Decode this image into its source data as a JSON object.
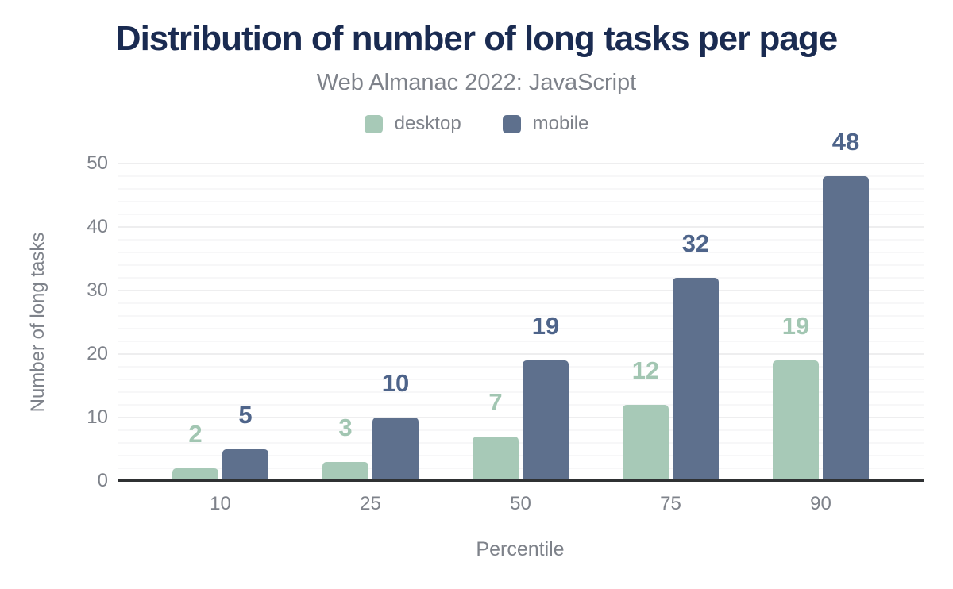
{
  "chart": {
    "title": "Distribution of number of long tasks per page",
    "subtitle": "Web Almanac 2022: JavaScript"
  },
  "chart_data": {
    "type": "bar",
    "categories": [
      "10",
      "25",
      "50",
      "75",
      "90"
    ],
    "series": [
      {
        "name": "desktop",
        "color": "#a7c9b7",
        "label_color": "#a2c6b2",
        "values": [
          2,
          3,
          7,
          12,
          19
        ]
      },
      {
        "name": "mobile",
        "color": "#5e708d",
        "label_color": "#4e648a",
        "values": [
          5,
          10,
          19,
          32,
          48
        ]
      }
    ],
    "xlabel": "Percentile",
    "ylabel": "Number of long tasks",
    "ylim": [
      0,
      50
    ],
    "yticks": [
      0,
      10,
      20,
      30,
      40,
      50
    ],
    "minor_grid_step": 2,
    "grid": true,
    "legend_position": "top",
    "data_labels": true
  },
  "colors": {
    "background": "#ffffff",
    "title": "#1a2b51",
    "text_muted": "#7e828a",
    "axis_line": "#2f3133",
    "grid_major": "#eeeeef",
    "grid_minor": "#f7f7f8",
    "desktop": "#a7c9b7",
    "mobile": "#5e708d"
  }
}
